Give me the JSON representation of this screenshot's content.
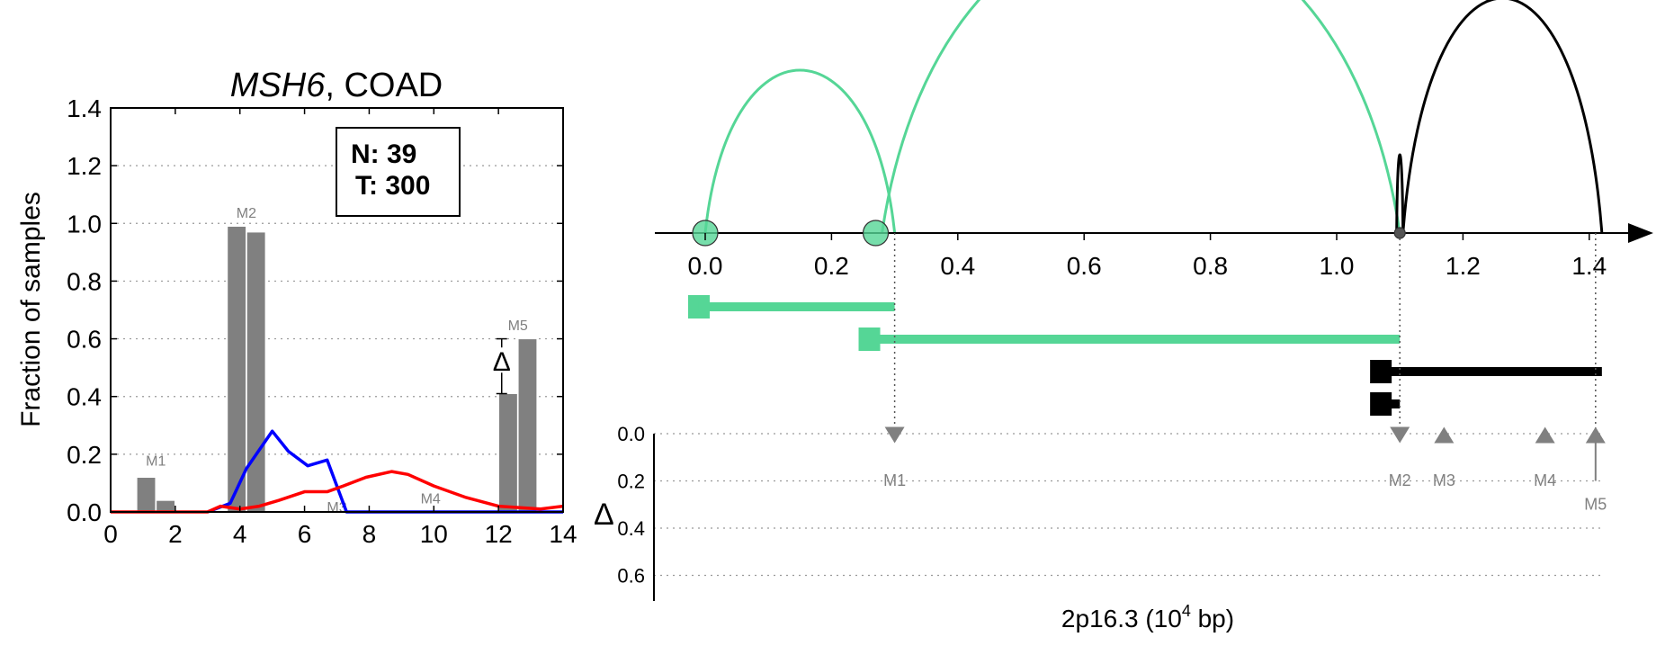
{
  "chart_data": [
    {
      "type": "bar",
      "title_gene": "MSH6",
      "title_rest": ", COAD",
      "ylabel": "Fraction of samples",
      "xlim": [
        0,
        14
      ],
      "ylim": [
        0,
        1.4
      ],
      "x_ticks": [
        "0",
        "2",
        "4",
        "6",
        "8",
        "10",
        "12",
        "14"
      ],
      "y_ticks": [
        "0.0",
        "0.2",
        "0.4",
        "0.6",
        "0.8",
        "1.0",
        "1.2",
        "1.4"
      ],
      "grid": "horizontal dotted",
      "box_lines": [
        "N: 39",
        "T: 300"
      ],
      "delta_symbol": "Δ",
      "bars": [
        {
          "x": 1.1,
          "value": 0.12,
          "color": "#808080"
        },
        {
          "x": 1.7,
          "value": 0.04,
          "color": "#808080"
        },
        {
          "x": 3.9,
          "value": 0.99,
          "color": "#808080"
        },
        {
          "x": 4.5,
          "value": 0.97,
          "color": "#808080"
        },
        {
          "x": 12.3,
          "value": 0.41,
          "color": "#808080"
        },
        {
          "x": 12.9,
          "value": 0.6,
          "color": "#808080"
        }
      ],
      "bar_labels": [
        {
          "text": "M1",
          "x": 1.4,
          "y": 0.16
        },
        {
          "text": "M2",
          "x": 4.2,
          "y": 1.02
        },
        {
          "text": "M3",
          "x": 7.0,
          "y": 0.0
        },
        {
          "text": "M4",
          "x": 9.9,
          "y": 0.03
        },
        {
          "text": "M5",
          "x": 12.6,
          "y": 0.63
        }
      ],
      "delta_marker": {
        "x": 12.1,
        "y_low": 0.41,
        "y_high": 0.6,
        "y": 0.52
      },
      "series": [
        {
          "color": "#0000ff",
          "x": [
            3.0,
            3.7,
            4.2,
            5.0,
            5.5,
            6.1,
            6.7,
            7.0,
            7.3,
            14.0
          ],
          "y": [
            0.0,
            0.03,
            0.15,
            0.28,
            0.21,
            0.16,
            0.18,
            0.09,
            0.0,
            0.0
          ]
        },
        {
          "color": "#ff0000",
          "x": [
            0,
            3.0,
            3.4,
            4.0,
            4.6,
            5.2,
            6.0,
            6.7,
            7.2,
            7.9,
            8.7,
            9.2,
            10.0,
            11.0,
            12.0,
            13.3,
            14.0
          ],
          "y": [
            0,
            0.0,
            0.02,
            0.01,
            0.02,
            0.04,
            0.07,
            0.07,
            0.09,
            0.12,
            0.14,
            0.13,
            0.09,
            0.05,
            0.02,
            0.01,
            0.02
          ]
        }
      ]
    },
    {
      "type": "diagram",
      "xlabel_main": "2p16.3 (10",
      "xlabel_sup": "4",
      "xlabel_end": " bp)",
      "xlim": [
        0,
        1.5
      ],
      "x_ticks": [
        "0.0",
        "0.2",
        "0.4",
        "0.6",
        "0.8",
        "1.0",
        "1.2",
        "1.4"
      ],
      "arc_colors": {
        "green": "#55d696",
        "black": "#000000"
      },
      "exon_nodes": [
        0.0,
        0.27,
        1.1
      ],
      "arcs": [
        {
          "from": 0.0,
          "to": 0.3,
          "color": "#55d696",
          "height": 0.52
        },
        {
          "from": 0.28,
          "to": 1.1,
          "color": "#55d696",
          "height": 1.0
        },
        {
          "from": 1.095,
          "to": 1.105,
          "color": "#000000",
          "height": 0.25
        },
        {
          "from": 1.105,
          "to": 1.42,
          "color": "#000000",
          "height": 0.75
        }
      ],
      "transcripts": [
        {
          "start": -0.01,
          "end": 0.3,
          "color": "#55d696"
        },
        {
          "start": 0.26,
          "end": 1.1,
          "color": "#55d696"
        },
        {
          "start": 1.07,
          "end": 1.42,
          "color": "#000000"
        },
        {
          "start": 1.07,
          "end": 1.1,
          "color": "#000000"
        }
      ],
      "delta_label": "Δ",
      "delta_ticks": [
        "0.0",
        "0.2",
        "0.4",
        "0.6"
      ],
      "markers": [
        {
          "label": "M1",
          "x": 0.3,
          "delta": 0.04,
          "dir": "down"
        },
        {
          "label": "M2",
          "x": 1.1,
          "delta": 0.04,
          "dir": "down"
        },
        {
          "label": "M3",
          "x": 1.17,
          "delta": 0.04,
          "dir": "up"
        },
        {
          "label": "M4",
          "x": 1.33,
          "delta": 0.04,
          "dir": "up"
        },
        {
          "label": "M5",
          "x": 1.41,
          "delta": 0.2,
          "dir": "up"
        }
      ]
    }
  ]
}
